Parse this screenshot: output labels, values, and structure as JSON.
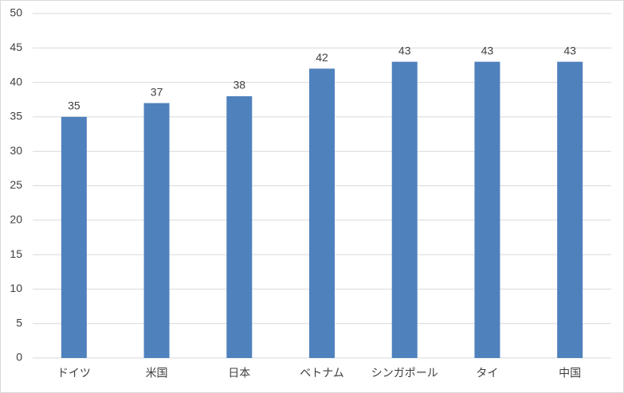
{
  "chart_data": {
    "type": "bar",
    "categories": [
      "ドイツ",
      "米国",
      "日本",
      "ベトナム",
      "シンガポール",
      "タイ",
      "中国"
    ],
    "values": [
      35,
      37,
      38,
      42,
      43,
      43,
      43
    ],
    "color": "#4f81bd",
    "ylim": [
      0,
      50
    ],
    "yticks": [
      0,
      5,
      10,
      15,
      20,
      25,
      30,
      35,
      40,
      45,
      50
    ],
    "grid": true,
    "data_labels": true
  }
}
